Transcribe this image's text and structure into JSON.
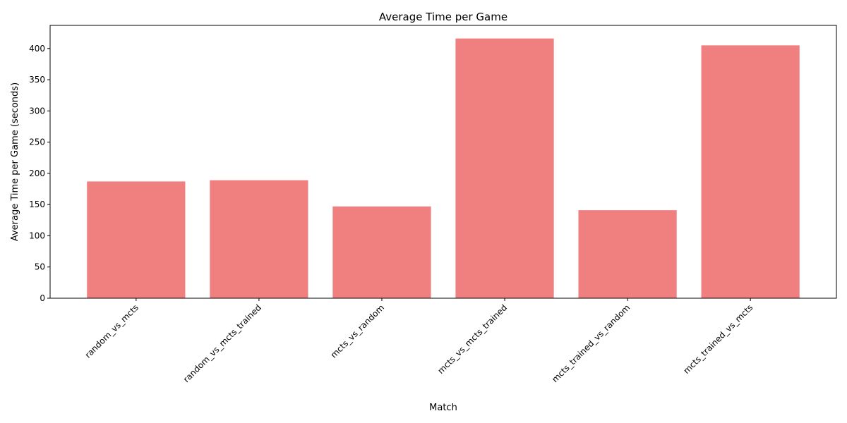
{
  "chart_data": {
    "type": "bar",
    "title": "Average Time per Game",
    "xlabel": "Match",
    "ylabel": "Average Time per Game (seconds)",
    "categories": [
      "random_vs_mcts",
      "random_vs_mcts_trained",
      "mcts_vs_random",
      "mcts_vs_mcts_trained",
      "mcts_trained_vs_random",
      "mcts_trained_vs_mcts"
    ],
    "values": [
      187,
      189,
      147,
      416,
      141,
      405
    ],
    "ylim": [
      0,
      437
    ],
    "yticks": [
      0,
      50,
      100,
      150,
      200,
      250,
      300,
      350,
      400
    ],
    "bar_color": "#f08080",
    "grid": false,
    "xtick_rotation_deg": 45
  }
}
